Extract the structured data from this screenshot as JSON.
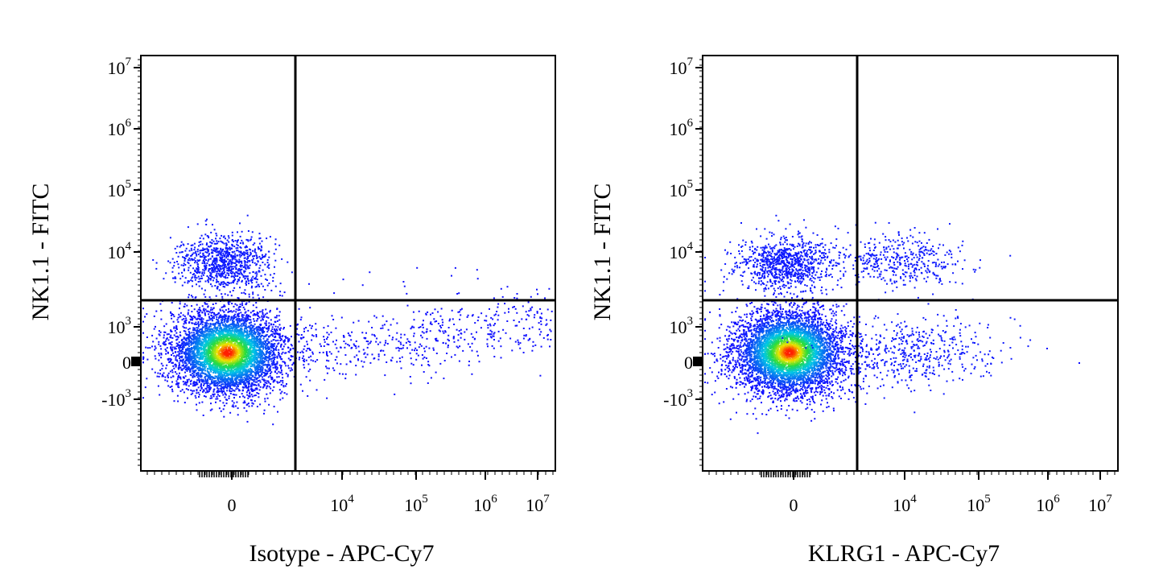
{
  "chart_data": [
    {
      "type": "scatter",
      "xlabel": "Isotype -  APC-Cy7",
      "ylabel": "NK1.1 - FITC",
      "x_scale": "biexponential",
      "y_scale": "biexponential",
      "x_ticks": [
        {
          "base": "0",
          "exp": ""
        },
        {
          "base": "10",
          "exp": "4"
        },
        {
          "base": "10",
          "exp": "5"
        },
        {
          "base": "10",
          "exp": "6"
        },
        {
          "base": "10",
          "exp": "7"
        }
      ],
      "y_ticks": [
        {
          "base": "10",
          "exp": "7"
        },
        {
          "base": "10",
          "exp": "6"
        },
        {
          "base": "10",
          "exp": "5"
        },
        {
          "base": "10",
          "exp": "4"
        },
        {
          "base": "10",
          "exp": "3"
        },
        {
          "base": "0",
          "exp": ""
        },
        {
          "base": "-10",
          "exp": "3"
        }
      ],
      "quadrant_gate": {
        "x": 2500,
        "y": 2500
      },
      "populations": [
        {
          "name": "main",
          "x_center": 0,
          "y_center": 0,
          "relative_density": "high"
        },
        {
          "name": "nk-pos",
          "x_center": 0,
          "y_center": 6000,
          "relative_density": "medium"
        },
        {
          "name": "apc-tail",
          "x_center": 100000,
          "y_center": 0,
          "relative_density": "low"
        }
      ],
      "grid": false,
      "legend": "none"
    },
    {
      "type": "scatter",
      "xlabel": "KLRG1 -  APC-Cy7",
      "ylabel": "NK1.1 - FITC",
      "x_scale": "biexponential",
      "y_scale": "biexponential",
      "x_ticks": [
        {
          "base": "0",
          "exp": ""
        },
        {
          "base": "10",
          "exp": "4"
        },
        {
          "base": "10",
          "exp": "5"
        },
        {
          "base": "10",
          "exp": "6"
        },
        {
          "base": "10",
          "exp": "7"
        }
      ],
      "y_ticks": [
        {
          "base": "10",
          "exp": "7"
        },
        {
          "base": "10",
          "exp": "6"
        },
        {
          "base": "10",
          "exp": "5"
        },
        {
          "base": "10",
          "exp": "4"
        },
        {
          "base": "10",
          "exp": "3"
        },
        {
          "base": "0",
          "exp": ""
        },
        {
          "base": "-10",
          "exp": "3"
        }
      ],
      "quadrant_gate": {
        "x": 2500,
        "y": 2500
      },
      "populations": [
        {
          "name": "main",
          "x_center": 0,
          "y_center": 0,
          "relative_density": "high"
        },
        {
          "name": "nk-pos",
          "x_center": 0,
          "y_center": 6000,
          "relative_density": "medium"
        },
        {
          "name": "klrg1-nk-pos",
          "x_center": 8000,
          "y_center": 6000,
          "relative_density": "low"
        },
        {
          "name": "klrg1-pos",
          "x_center": 15000,
          "y_center": 0,
          "relative_density": "low"
        }
      ],
      "grid": false,
      "legend": "none"
    }
  ],
  "colors": {
    "dot_low": "#1010ff",
    "dot_mid": "#00e0e0",
    "dot_high": "#ff2000",
    "axis": "#000000"
  }
}
